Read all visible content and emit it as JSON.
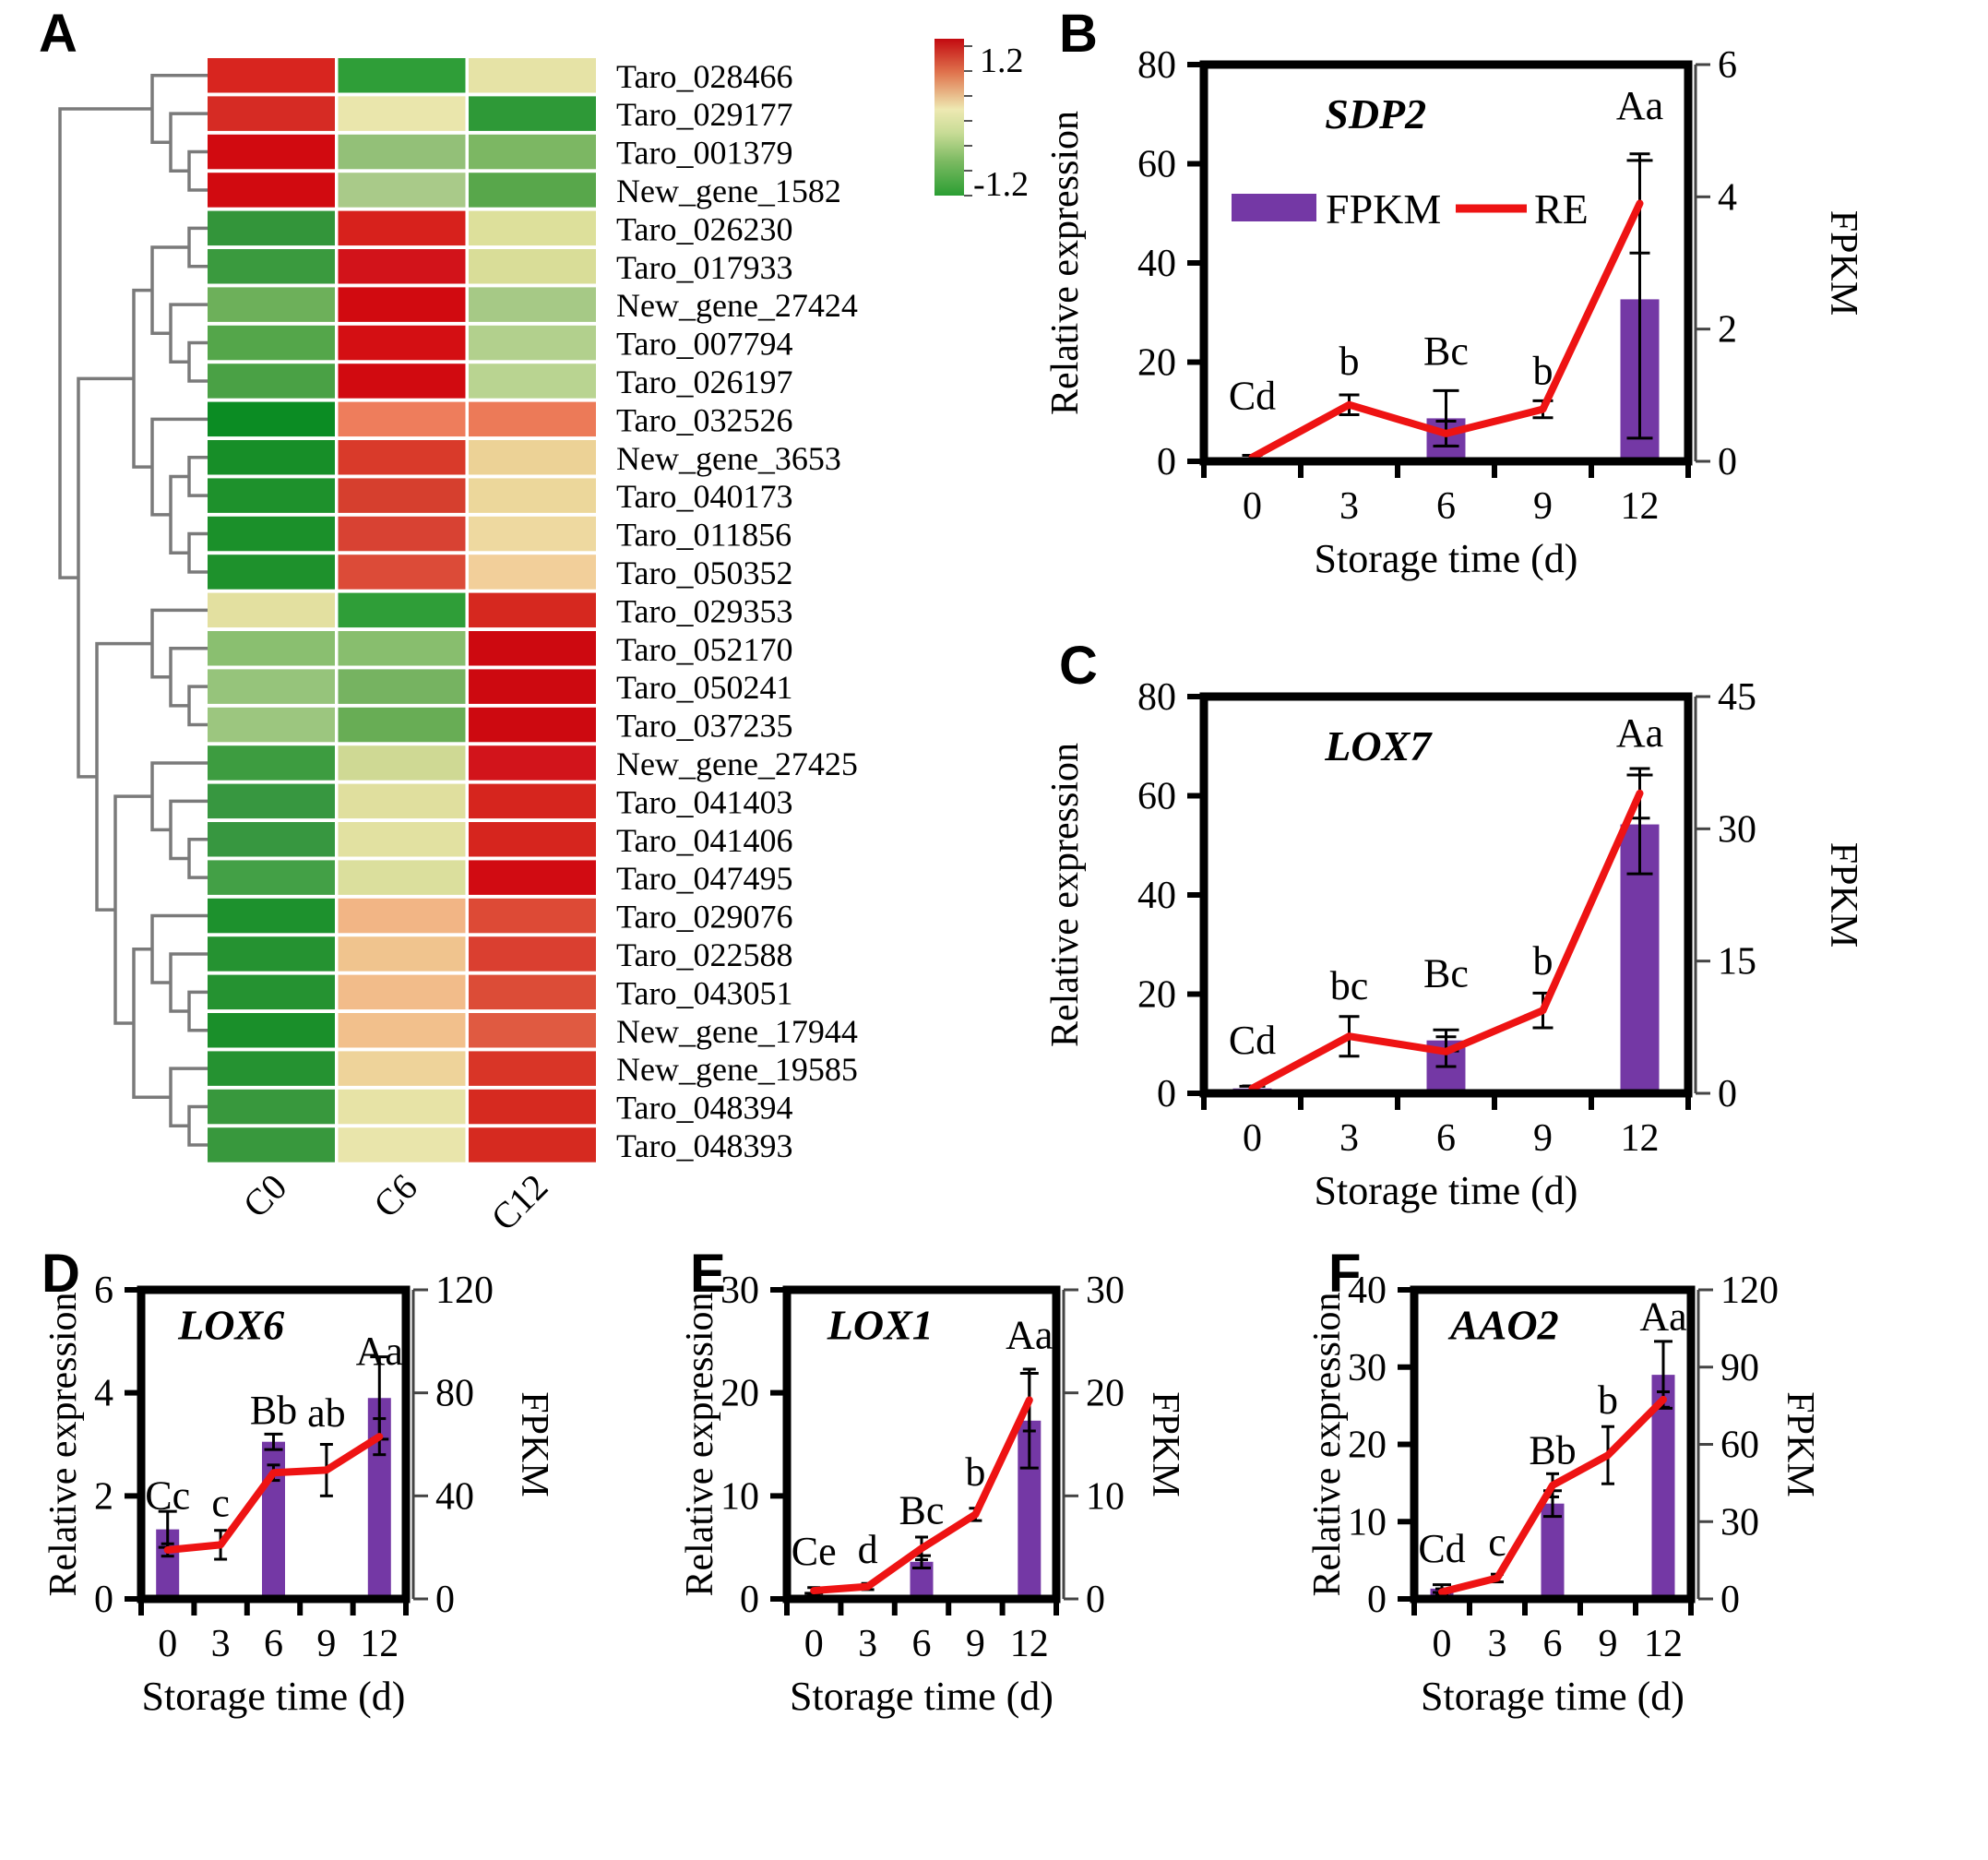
{
  "panels": {
    "A": "A",
    "B": "B",
    "C": "C",
    "D": "D",
    "E": "E",
    "F": "F"
  },
  "colors": {
    "bar_fill": "#7438a5",
    "line_stroke": "#ee1313",
    "frame": "#000000",
    "error_stroke": "#000000",
    "dendrogram_stroke": "#7a7a7a",
    "right_axis_stroke": "#444444"
  },
  "chart_data": [
    {
      "type": "heatmap",
      "panel": "A",
      "columns": [
        "C0",
        "C6",
        "C12"
      ],
      "colorbar": {
        "max_label": "1.2",
        "min_label": "-1.2",
        "stops": [
          {
            "offset": 0.0,
            "color": "#c30a10"
          },
          {
            "offset": 0.22,
            "color": "#e0764f"
          },
          {
            "offset": 0.45,
            "color": "#eee9b2"
          },
          {
            "offset": 0.6,
            "color": "#c8dc96"
          },
          {
            "offset": 0.78,
            "color": "#7cba62"
          },
          {
            "offset": 1.0,
            "color": "#2b9e33"
          }
        ]
      },
      "dendrogram": [
        [
          0,
          [
            1,
            [
              2,
              3
            ]
          ]
        ],
        [
          [
            [
              [
                4,
                5
              ],
              [
                6,
                [
                  7,
                  8
                ]
              ]
            ],
            [
              9,
              [
                [
                  10,
                  11
                ],
                [
                  12,
                  13
                ]
              ]
            ]
          ],
          [
            [
              14,
              [
                15,
                [
                  16,
                  17
                ]
              ]
            ],
            [
              [
                18,
                [
                  19,
                  [
                    20,
                    21
                  ]
                ]
              ],
              [
                [
                  22,
                  [
                    23,
                    [
                      24,
                      25
                    ]
                  ]
                ],
                [
                  26,
                  [
                    27,
                    28
                  ]
                ]
              ]
            ]
          ]
        ]
      ],
      "rows": [
        {
          "gene": "Taro_028466",
          "values": [
            1.0,
            -0.9,
            0.05
          ],
          "colors": [
            "#d8251f",
            "#2f9e38",
            "#e6e3a6"
          ]
        },
        {
          "gene": "Taro_029177",
          "values": [
            1.0,
            0.0,
            -0.9
          ],
          "colors": [
            "#d62b24",
            "#eae6ac",
            "#2e9937"
          ]
        },
        {
          "gene": "Taro_001379",
          "values": [
            1.15,
            -0.45,
            -0.55
          ],
          "colors": [
            "#d10a10",
            "#93c078",
            "#7cb763"
          ]
        },
        {
          "gene": "New_gene_1582",
          "values": [
            1.15,
            -0.35,
            -0.75
          ],
          "colors": [
            "#d10a10",
            "#a9ca89",
            "#58a74b"
          ]
        },
        {
          "gene": "Taro_026230",
          "values": [
            -0.85,
            1.0,
            -0.1
          ],
          "colors": [
            "#33953a",
            "#d7211c",
            "#dde09b"
          ]
        },
        {
          "gene": "Taro_017933",
          "values": [
            -0.85,
            1.1,
            -0.1
          ],
          "colors": [
            "#3a9a3e",
            "#d2131a",
            "#d9dd98"
          ]
        },
        {
          "gene": "New_gene_27424",
          "values": [
            -0.6,
            1.15,
            -0.35
          ],
          "colors": [
            "#6db05a",
            "#d10a10",
            "#a6c986"
          ]
        },
        {
          "gene": "Taro_007794",
          "values": [
            -0.75,
            1.1,
            -0.3
          ],
          "colors": [
            "#54a64a",
            "#d40f13",
            "#b2d08d"
          ]
        },
        {
          "gene": "Taro_026197",
          "values": [
            -0.8,
            1.15,
            -0.3
          ],
          "colors": [
            "#4aa145",
            "#d10a10",
            "#b9d491"
          ]
        },
        {
          "gene": "Taro_032526",
          "values": [
            -1.2,
            0.6,
            0.6
          ],
          "colors": [
            "#0b8c23",
            "#ee7d5c",
            "#ec7a58"
          ]
        },
        {
          "gene": "New_gene_3653",
          "values": [
            -1.15,
            0.9,
            0.2
          ],
          "colors": [
            "#178e28",
            "#d93a2a",
            "#ecd296"
          ]
        },
        {
          "gene": "Taro_040173",
          "values": [
            -1.1,
            0.85,
            0.2
          ],
          "colors": [
            "#1e912c",
            "#d63f2e",
            "#ecd79b"
          ]
        },
        {
          "gene": "Taro_011856",
          "values": [
            -1.1,
            0.85,
            0.2
          ],
          "colors": [
            "#1b902a",
            "#d84233",
            "#eed9a0"
          ]
        },
        {
          "gene": "Taro_050352",
          "values": [
            -1.1,
            0.8,
            0.3
          ],
          "colors": [
            "#1e912c",
            "#dc4b38",
            "#f2cf9a"
          ]
        },
        {
          "gene": "Taro_029353",
          "values": [
            0.0,
            -0.9,
            1.0
          ],
          "colors": [
            "#e3e0a0",
            "#2f9e38",
            "#d6281f"
          ]
        },
        {
          "gene": "Taro_052170",
          "values": [
            -0.5,
            -0.5,
            1.2
          ],
          "colors": [
            "#8abf70",
            "#88be6e",
            "#cd0910"
          ]
        },
        {
          "gene": "Taro_050241",
          "values": [
            -0.45,
            -0.6,
            1.2
          ],
          "colors": [
            "#96c47b",
            "#76b361",
            "#cd0910"
          ]
        },
        {
          "gene": "Taro_037235",
          "values": [
            -0.45,
            -0.65,
            1.2
          ],
          "colors": [
            "#9cc67f",
            "#68ad55",
            "#cd0910"
          ]
        },
        {
          "gene": "New_gene_27425",
          "values": [
            -0.85,
            -0.15,
            1.1
          ],
          "colors": [
            "#3d9c40",
            "#cfd994",
            "#d2141b"
          ]
        },
        {
          "gene": "Taro_041403",
          "values": [
            -0.9,
            0.0,
            1.0
          ],
          "colors": [
            "#379740",
            "#e0df9e",
            "#d6251e"
          ]
        },
        {
          "gene": "Taro_041406",
          "values": [
            -0.9,
            0.0,
            1.0
          ],
          "colors": [
            "#379740",
            "#e2e1a1",
            "#d6251e"
          ]
        },
        {
          "gene": "Taro_047495",
          "values": [
            -0.8,
            -0.1,
            1.15
          ],
          "colors": [
            "#43a046",
            "#dbdf9d",
            "#d10b12"
          ]
        },
        {
          "gene": "Taro_029076",
          "values": [
            -1.1,
            0.45,
            0.85
          ],
          "colors": [
            "#1d912d",
            "#f2b585",
            "#dd4a36"
          ]
        },
        {
          "gene": "Taro_022588",
          "values": [
            -1.05,
            0.35,
            0.9
          ],
          "colors": [
            "#259231",
            "#f0c48e",
            "#da3f30"
          ]
        },
        {
          "gene": "Taro_043051",
          "values": [
            -1.05,
            0.4,
            0.85
          ],
          "colors": [
            "#259231",
            "#f2bc8a",
            "#dc4c37"
          ]
        },
        {
          "gene": "New_gene_17944",
          "values": [
            -1.15,
            0.4,
            0.75
          ],
          "colors": [
            "#1a8f2a",
            "#f2c08c",
            "#e05a41"
          ]
        },
        {
          "gene": "New_gene_19585",
          "values": [
            -1.05,
            0.25,
            0.95
          ],
          "colors": [
            "#259231",
            "#eed39a",
            "#d93527"
          ]
        },
        {
          "gene": "Taro_048394",
          "values": [
            -0.85,
            0.05,
            1.0
          ],
          "colors": [
            "#38983d",
            "#e7e3a6",
            "#d62a20"
          ]
        },
        {
          "gene": "Taro_048393",
          "values": [
            -0.85,
            0.0,
            1.0
          ],
          "colors": [
            "#38983d",
            "#e9e5ab",
            "#d62a20"
          ]
        }
      ]
    },
    {
      "type": "bar-line",
      "panel": "B",
      "gene": "SDP2",
      "x": [
        0,
        3,
        6,
        9,
        12
      ],
      "xlabel": "Storage time (d)",
      "left_axis": {
        "label": "Relative expression",
        "min": 0,
        "max": 80,
        "ticks": [
          0,
          20,
          40,
          60,
          80
        ]
      },
      "right_axis": {
        "label": "FPKM",
        "min": 0,
        "max": 6,
        "ticks": [
          0,
          2,
          4,
          6
        ]
      },
      "bars_fpkm": [
        null,
        null,
        0.65,
        null,
        2.45
      ],
      "bar_errors": [
        null,
        null,
        0.42,
        null,
        2.1
      ],
      "line_re": [
        0.8,
        11.4,
        5.6,
        10.5,
        52
      ],
      "line_errors": [
        0.4,
        2,
        2.5,
        1.7,
        10
      ],
      "sig_letters": [
        "Cd",
        "b",
        "Bc",
        "b",
        "Aa"
      ],
      "letter_y": [
        10.5,
        17.5,
        19.5,
        15.5,
        69
      ],
      "legend": {
        "bar": "FPKM",
        "line": "RE"
      }
    },
    {
      "type": "bar-line",
      "panel": "C",
      "gene": "LOX7",
      "x": [
        0,
        3,
        6,
        9,
        12
      ],
      "xlabel": "Storage time (d)",
      "left_axis": {
        "label": "Relative expression",
        "min": 0,
        "max": 80,
        "ticks": [
          0,
          20,
          40,
          60,
          80
        ]
      },
      "right_axis": {
        "label": "FPKM",
        "min": 0,
        "max": 45,
        "ticks": [
          0,
          15,
          30,
          45
        ]
      },
      "bars_fpkm": [
        0.55,
        null,
        6.0,
        null,
        30.5
      ],
      "bar_errors": [
        0.25,
        null,
        1.2,
        null,
        5.6
      ],
      "line_re": [
        1,
        11.5,
        8.4,
        16.7,
        60.5
      ],
      "line_errors": [
        0.5,
        4,
        3,
        3.5,
        5
      ],
      "sig_letters": [
        "Cd",
        "bc",
        "Bc",
        "b",
        "Aa"
      ],
      "letter_y": [
        8,
        19,
        21.5,
        24,
        70
      ]
    },
    {
      "type": "bar-line",
      "panel": "D",
      "gene": "LOX6",
      "x": [
        0,
        3,
        6,
        9,
        12
      ],
      "xlabel": "Storage time (d)",
      "left_axis": {
        "label": "Relative expression",
        "min": 0,
        "max": 6,
        "ticks": [
          0,
          2,
          4,
          6
        ]
      },
      "right_axis": {
        "label": "FPKM",
        "min": 0,
        "max": 120,
        "ticks": [
          0,
          40,
          80,
          120
        ]
      },
      "bars_fpkm": [
        27,
        null,
        61,
        null,
        78
      ],
      "bar_errors": [
        7,
        null,
        3,
        null,
        16
      ],
      "line_re": [
        0.95,
        1.05,
        2.45,
        2.5,
        3.15
      ],
      "line_errors": [
        0.12,
        0.28,
        0.15,
        0.5,
        0.35
      ],
      "sig_letters": [
        "Cc",
        "c",
        "Bb",
        "ab",
        "Aa"
      ],
      "letter_y": [
        1.75,
        1.6,
        3.4,
        3.35,
        4.55
      ]
    },
    {
      "type": "bar-line",
      "panel": "E",
      "gene": "LOX1",
      "x": [
        0,
        3,
        6,
        9,
        12
      ],
      "xlabel": "Storage time (d)",
      "left_axis": {
        "label": "Relative expression",
        "min": 0,
        "max": 30,
        "ticks": [
          0,
          10,
          20,
          30
        ]
      },
      "right_axis": {
        "label": "FPKM",
        "min": 0,
        "max": 30,
        "ticks": [
          0,
          10,
          20,
          30
        ]
      },
      "bars_fpkm": [
        0.3,
        null,
        3.6,
        null,
        17.3
      ],
      "bar_errors": [
        0.25,
        null,
        0.6,
        null,
        4.6
      ],
      "line_re": [
        0.8,
        1.2,
        4.9,
        8.2,
        19.3
      ],
      "line_errors": [
        0.3,
        0.3,
        1.1,
        0.6,
        3
      ],
      "sig_letters": [
        "Ce",
        "d",
        "Bc",
        "b",
        "Aa"
      ],
      "letter_y": [
        3.3,
        3.5,
        7.3,
        11,
        24.3
      ]
    },
    {
      "type": "bar-line",
      "panel": "F",
      "gene": "AAO2",
      "x": [
        0,
        3,
        6,
        9,
        12
      ],
      "xlabel": "Storage time (d)",
      "left_axis": {
        "label": "Relative expression",
        "min": 0,
        "max": 40,
        "ticks": [
          0,
          10,
          20,
          30,
          40
        ]
      },
      "right_axis": {
        "label": "FPKM",
        "min": 0,
        "max": 120,
        "ticks": [
          0,
          30,
          60,
          90,
          120
        ]
      },
      "bars_fpkm": [
        4,
        null,
        37,
        null,
        87
      ],
      "bar_errors": [
        1.5,
        null,
        5,
        null,
        13
      ],
      "line_re": [
        0.9,
        2.7,
        14.7,
        18.6,
        25.8
      ],
      "line_errors": [
        0.4,
        0.5,
        1.5,
        3.7,
        1
      ],
      "sig_letters": [
        "Cd",
        "c",
        "Bb",
        "b",
        "Aa"
      ],
      "letter_y": [
        4.8,
        5.6,
        17.5,
        24,
        34.8
      ]
    }
  ]
}
